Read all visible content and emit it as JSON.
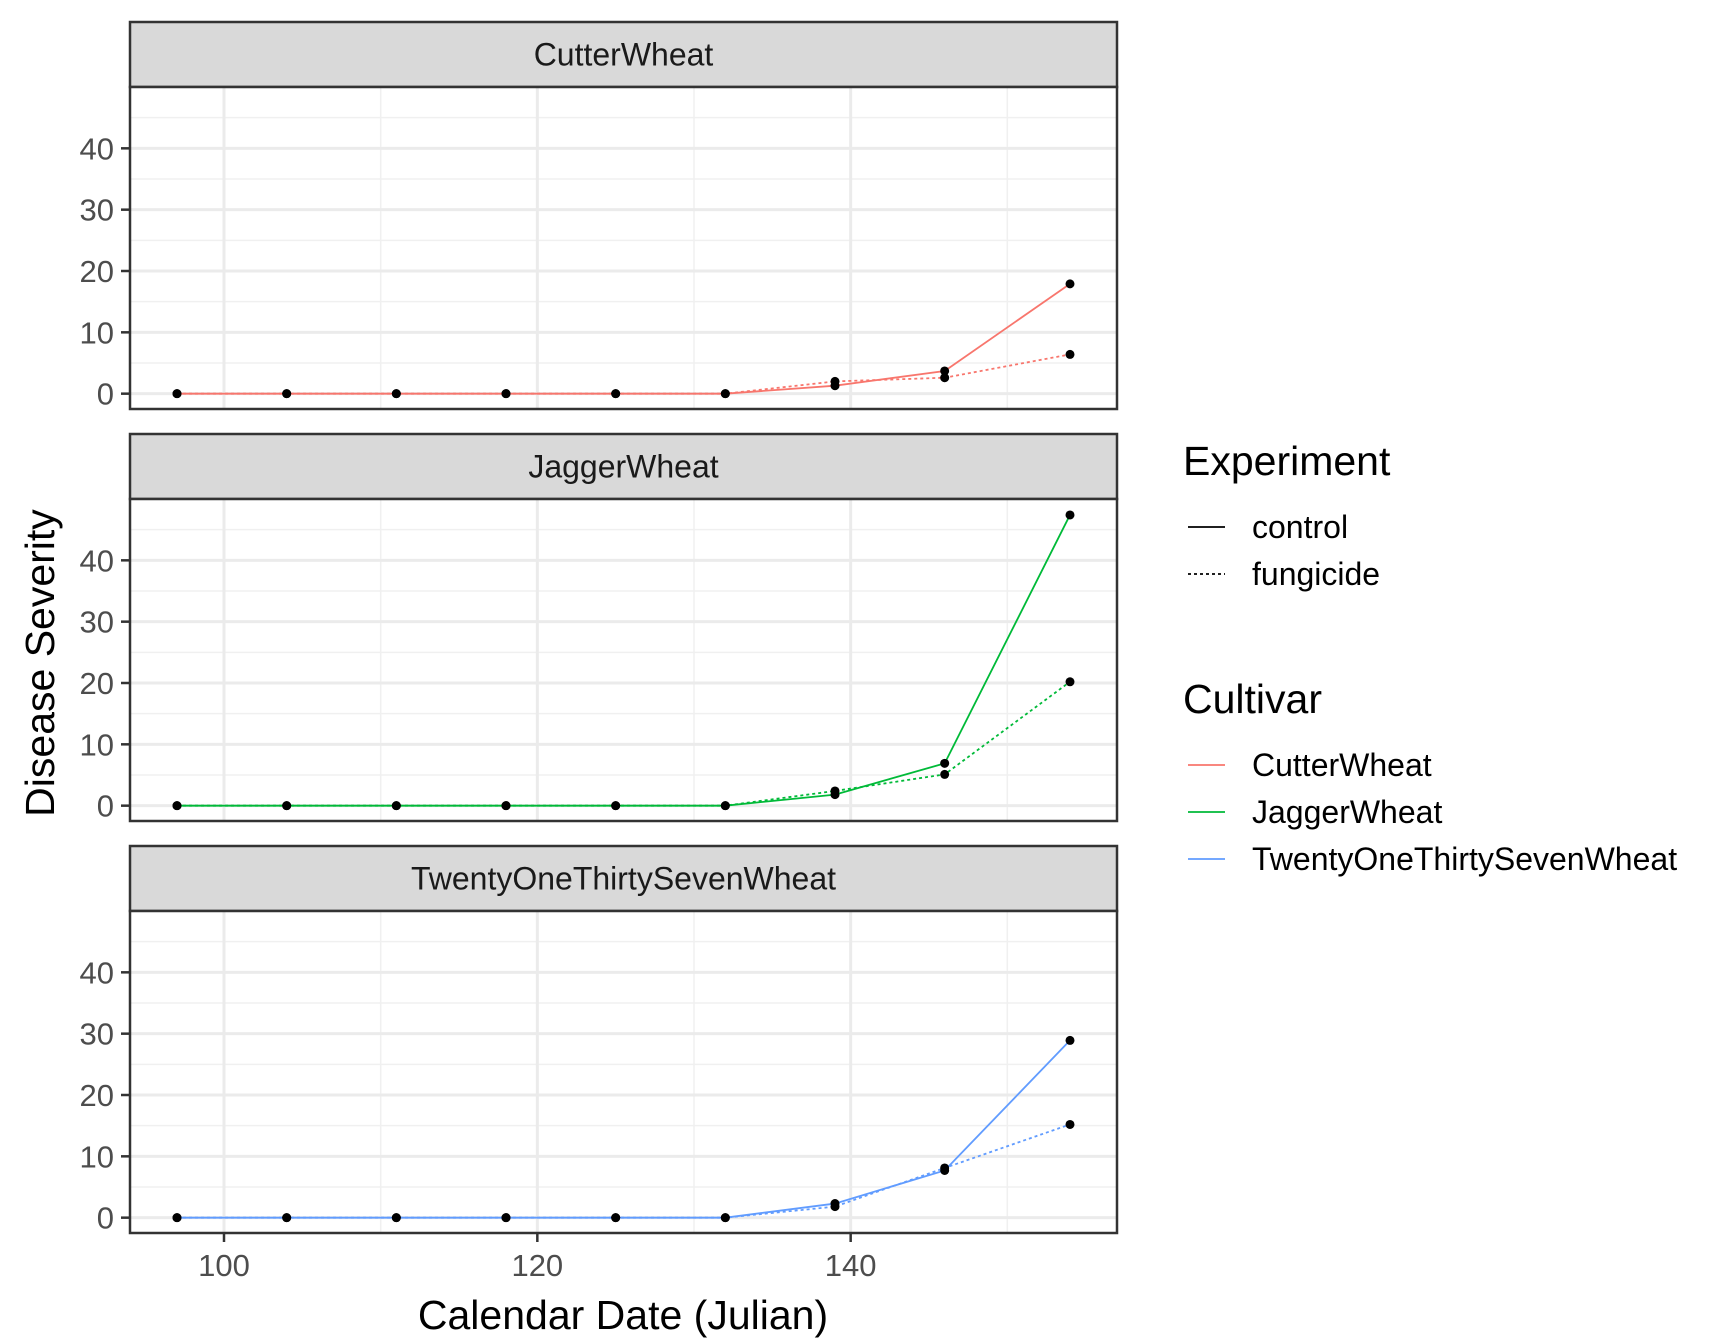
{
  "chart_data": {
    "type": "line",
    "xlabel": "Calendar Date (Julian)",
    "ylabel": "Disease Severity",
    "xlim": [
      94,
      157
    ],
    "ylim": [
      -2.5,
      50
    ],
    "x_ticks": [
      100,
      120,
      140
    ],
    "y_ticks": [
      0,
      10,
      20,
      30,
      40
    ],
    "grid": true,
    "legend_position": "right",
    "legends": [
      {
        "title": "Experiment",
        "items": [
          {
            "label": "control",
            "linetype": "solid"
          },
          {
            "label": "fungicide",
            "linetype": "dotted"
          }
        ]
      },
      {
        "title": "Cultivar",
        "items": [
          {
            "label": "CutterWheat",
            "color": "#F8766D"
          },
          {
            "label": "JaggerWheat",
            "color": "#00BA38"
          },
          {
            "label": "TwentyOneThirtySevenWheat",
            "color": "#619CFF"
          }
        ]
      }
    ],
    "facets": [
      {
        "title": "CutterWheat",
        "color": "#F8766D",
        "series": [
          {
            "experiment": "control",
            "x": [
              97,
              104,
              111,
              118,
              125,
              132,
              139,
              146,
              154
            ],
            "y": [
              0,
              0,
              0,
              0,
              0,
              0,
              1.3,
              3.7,
              17.9
            ]
          },
          {
            "experiment": "fungicide",
            "x": [
              97,
              104,
              111,
              118,
              125,
              132,
              139,
              146,
              154
            ],
            "y": [
              0,
              0,
              0,
              0,
              0,
              0,
              2.0,
              2.6,
              6.4
            ]
          }
        ]
      },
      {
        "title": "JaggerWheat",
        "color": "#00BA38",
        "series": [
          {
            "experiment": "control",
            "x": [
              97,
              104,
              111,
              118,
              125,
              132,
              139,
              146,
              154
            ],
            "y": [
              0,
              0,
              0,
              0,
              0,
              0,
              1.8,
              6.9,
              47.4
            ]
          },
          {
            "experiment": "fungicide",
            "x": [
              97,
              104,
              111,
              118,
              125,
              132,
              139,
              146,
              154
            ],
            "y": [
              0,
              0,
              0,
              0,
              0,
              0,
              2.4,
              5.1,
              20.2
            ]
          }
        ]
      },
      {
        "title": "TwentyOneThirtySevenWheat",
        "color": "#619CFF",
        "series": [
          {
            "experiment": "control",
            "x": [
              97,
              104,
              111,
              118,
              125,
              132,
              139,
              146,
              154
            ],
            "y": [
              0,
              0,
              0,
              0,
              0,
              0,
              2.3,
              7.7,
              28.9
            ]
          },
          {
            "experiment": "fungicide",
            "x": [
              97,
              104,
              111,
              118,
              125,
              132,
              139,
              146,
              154
            ],
            "y": [
              0,
              0,
              0,
              0,
              0,
              0,
              1.8,
              8.1,
              15.2
            ]
          }
        ]
      }
    ]
  }
}
